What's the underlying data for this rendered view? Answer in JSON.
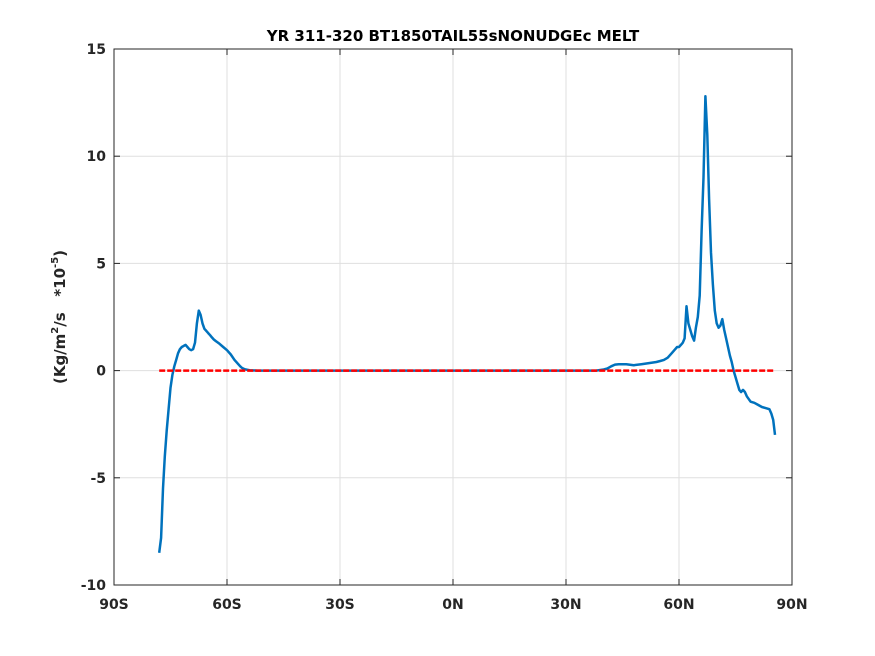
{
  "chart_data": {
    "type": "line",
    "title": "YR 311-320 BT1850TAIL55sNONUDGEc MELT",
    "xlabel": "",
    "ylabel": {
      "pre": "(Kg/m",
      "sup1": "2",
      "mid": "/s   *10",
      "sup2": "-5",
      "post": ")"
    },
    "xlim": [
      -90,
      90
    ],
    "ylim": [
      -10,
      15
    ],
    "grid": true,
    "x_ticks": [
      {
        "value": -90,
        "label": "90S"
      },
      {
        "value": -60,
        "label": "60S"
      },
      {
        "value": -30,
        "label": "30S"
      },
      {
        "value": 0,
        "label": "0N"
      },
      {
        "value": 30,
        "label": "30N"
      },
      {
        "value": 60,
        "label": "60N"
      },
      {
        "value": 90,
        "label": "90N"
      }
    ],
    "y_ticks": [
      {
        "value": -10,
        "label": "-10"
      },
      {
        "value": -5,
        "label": "-5"
      },
      {
        "value": 0,
        "label": "0"
      },
      {
        "value": 5,
        "label": "5"
      },
      {
        "value": 10,
        "label": "10"
      },
      {
        "value": 15,
        "label": "15"
      }
    ],
    "series": [
      {
        "color": "#0072BD",
        "style": "solid",
        "x": [
          -78,
          -77.5,
          -77,
          -76.5,
          -76,
          -75.5,
          -75,
          -74.5,
          -74,
          -73.5,
          -73,
          -72.5,
          -72,
          -71.5,
          -71,
          -70.5,
          -70,
          -69.5,
          -69,
          -68.5,
          -68,
          -67.5,
          -67,
          -66.5,
          -66,
          -65.5,
          -65,
          -64.5,
          -64,
          -63.5,
          -63,
          -62,
          -61,
          -60,
          -59,
          -58,
          -57,
          -56.5,
          -56,
          -55.5,
          -55,
          -54,
          -52,
          -48,
          -40,
          -20,
          0,
          20,
          38,
          40,
          41,
          42,
          43,
          44,
          46,
          48,
          50,
          52,
          54,
          55,
          56,
          57,
          58,
          59,
          59.5,
          60,
          60.5,
          61,
          61.5,
          62,
          62.5,
          63,
          63.5,
          64,
          64.5,
          65,
          65.5,
          66,
          66.5,
          67,
          67.5,
          68,
          68.5,
          69,
          69.5,
          70,
          70.5,
          71,
          71.5,
          72,
          72.5,
          73,
          73.5,
          74,
          74.5,
          75,
          75.5,
          76,
          76.5,
          77,
          77.5,
          78,
          79,
          80,
          81,
          82,
          83,
          84,
          84.5,
          85,
          85.5
        ],
        "y": [
          -8.5,
          -7.8,
          -5.5,
          -4.0,
          -2.8,
          -1.8,
          -0.8,
          -0.2,
          0.2,
          0.5,
          0.8,
          1.0,
          1.1,
          1.15,
          1.2,
          1.1,
          1.0,
          0.95,
          1.0,
          1.3,
          2.2,
          2.8,
          2.6,
          2.2,
          1.95,
          1.85,
          1.75,
          1.65,
          1.55,
          1.45,
          1.38,
          1.25,
          1.1,
          0.95,
          0.75,
          0.5,
          0.3,
          0.2,
          0.12,
          0.08,
          0.05,
          0.02,
          0,
          0,
          0,
          0,
          0,
          0,
          0,
          0.05,
          0.1,
          0.2,
          0.28,
          0.3,
          0.3,
          0.25,
          0.3,
          0.35,
          0.4,
          0.45,
          0.5,
          0.6,
          0.8,
          1.0,
          1.1,
          1.1,
          1.2,
          1.3,
          1.5,
          3.0,
          2.2,
          1.9,
          1.6,
          1.4,
          2.0,
          2.5,
          3.5,
          6.5,
          9.0,
          12.8,
          11.0,
          8.0,
          5.5,
          4.0,
          2.8,
          2.2,
          2.0,
          2.1,
          2.4,
          1.9,
          1.5,
          1.1,
          0.7,
          0.4,
          0.0,
          -0.3,
          -0.6,
          -0.9,
          -1.0,
          -0.9,
          -1.0,
          -1.2,
          -1.45,
          -1.5,
          -1.6,
          -1.7,
          -1.75,
          -1.8,
          -2.0,
          -2.3,
          -3.0
        ]
      },
      {
        "color": "#FF0000",
        "style": "dashed",
        "x": [
          -78,
          85.5
        ],
        "y": [
          0,
          0
        ]
      }
    ]
  }
}
